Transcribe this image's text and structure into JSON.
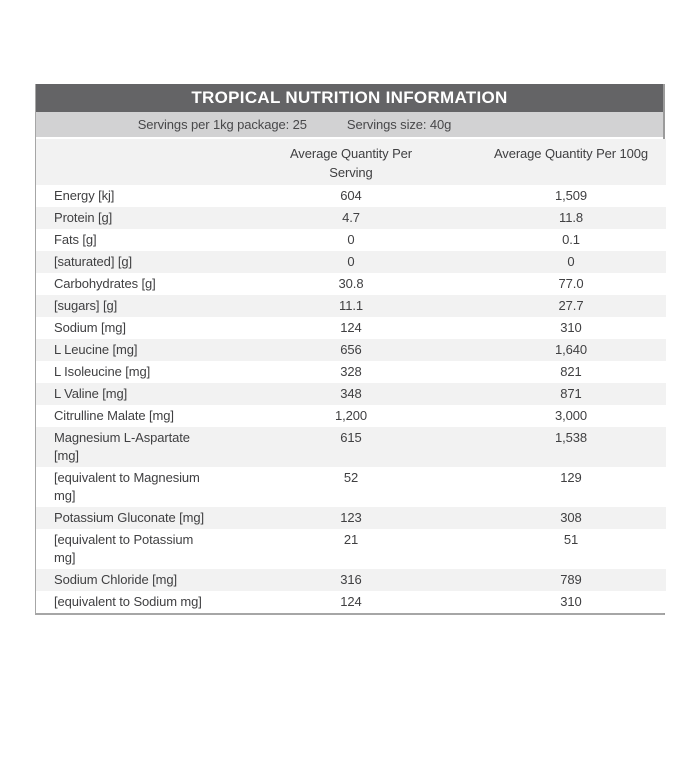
{
  "title": "TROPICAL NUTRITION INFORMATION",
  "servings": {
    "per_package": "Servings per 1kg package: 25",
    "size": "Servings size: 40g"
  },
  "columns": {
    "label": "",
    "serving": "Average Quantity Per Serving",
    "per_100g": "Average Quantity Per 100g"
  },
  "rows": [
    {
      "label": "Energy [kj]",
      "serving": "604",
      "per_100g": "1,509"
    },
    {
      "label": "Protein [g]",
      "serving": "4.7",
      "per_100g": "11.8"
    },
    {
      "label": "Fats [g]",
      "serving": "0",
      "per_100g": "0.1"
    },
    {
      "label": "[saturated] [g]",
      "serving": "0",
      "per_100g": "0"
    },
    {
      "label": "Carbohydrates [g]",
      "serving": "30.8",
      "per_100g": "77.0"
    },
    {
      "label": "[sugars] [g]",
      "serving": "11.1",
      "per_100g": "27.7"
    },
    {
      "label": "Sodium [mg]",
      "serving": "124",
      "per_100g": "310"
    },
    {
      "label": "L Leucine [mg]",
      "serving": "656",
      "per_100g": "1,640"
    },
    {
      "label": "L Isoleucine [mg]",
      "serving": "328",
      "per_100g": "821"
    },
    {
      "label": "L Valine [mg]",
      "serving": "348",
      "per_100g": "871"
    },
    {
      "label": "Citrulline Malate [mg]",
      "serving": "1,200",
      "per_100g": "3,000"
    },
    {
      "label": "Magnesium L-Aspartate [mg]",
      "serving": "615",
      "per_100g": "1,538"
    },
    {
      "label": "[equivalent to Magnesium mg]",
      "serving": "52",
      "per_100g": "129"
    },
    {
      "label": "Potassium Gluconate [mg]",
      "serving": "123",
      "per_100g": "308"
    },
    {
      "label": "[equivalent to Potassium mg]",
      "serving": "21",
      "per_100g": "51"
    },
    {
      "label": "Sodium Chloride [mg]",
      "serving": "316",
      "per_100g": "789"
    },
    {
      "label": "[equivalent to Sodium mg]",
      "serving": "124",
      "per_100g": "310"
    }
  ],
  "colors": {
    "title_bg": "#646466",
    "title_text": "#ffffff",
    "servings_bg": "#d2d2d3",
    "stripe_bg": "#f2f2f2",
    "body_text": "#404042",
    "border": "#a6a6a6"
  }
}
